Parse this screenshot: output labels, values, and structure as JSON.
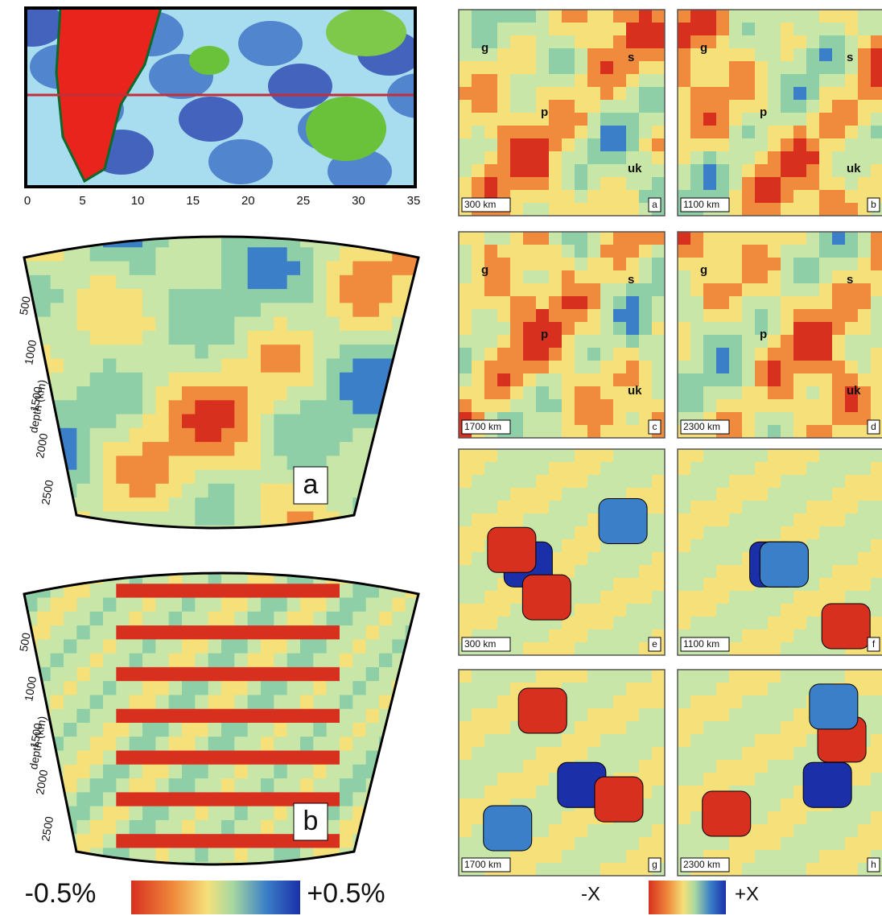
{
  "top_map": {
    "xticks": [
      0,
      5,
      10,
      15,
      20,
      25,
      30,
      35
    ]
  },
  "sections": [
    {
      "label": "a",
      "axis_title": "depth (km)",
      "depth_ticks": [
        500,
        1000,
        1500,
        2000,
        2500
      ]
    },
    {
      "label": "b",
      "axis_title": "depth (km)",
      "depth_ticks": [
        500,
        1000,
        1500,
        2000,
        2500
      ]
    }
  ],
  "left_colorbar": {
    "min_label": "-0.5%",
    "max_label": "+0.5%"
  },
  "maps": [
    {
      "depth": "300 km",
      "label": "a",
      "places": [
        "g",
        "s",
        "p",
        "uk"
      ]
    },
    {
      "depth": "1100 km",
      "label": "b",
      "places": [
        "g",
        "s",
        "p",
        "uk"
      ]
    },
    {
      "depth": "1700 km",
      "label": "c",
      "places": [
        "g",
        "s",
        "p",
        "uk"
      ]
    },
    {
      "depth": "2300 km",
      "label": "d",
      "places": [
        "g",
        "s",
        "p",
        "uk"
      ]
    },
    {
      "depth": "300 km",
      "label": "e",
      "places": []
    },
    {
      "depth": "1100 km",
      "label": "f",
      "places": []
    },
    {
      "depth": "1700 km",
      "label": "g",
      "places": []
    },
    {
      "depth": "2300 km",
      "label": "h",
      "places": []
    }
  ],
  "right_colorbar": {
    "min_label": "-X",
    "max_label": "+X"
  }
}
